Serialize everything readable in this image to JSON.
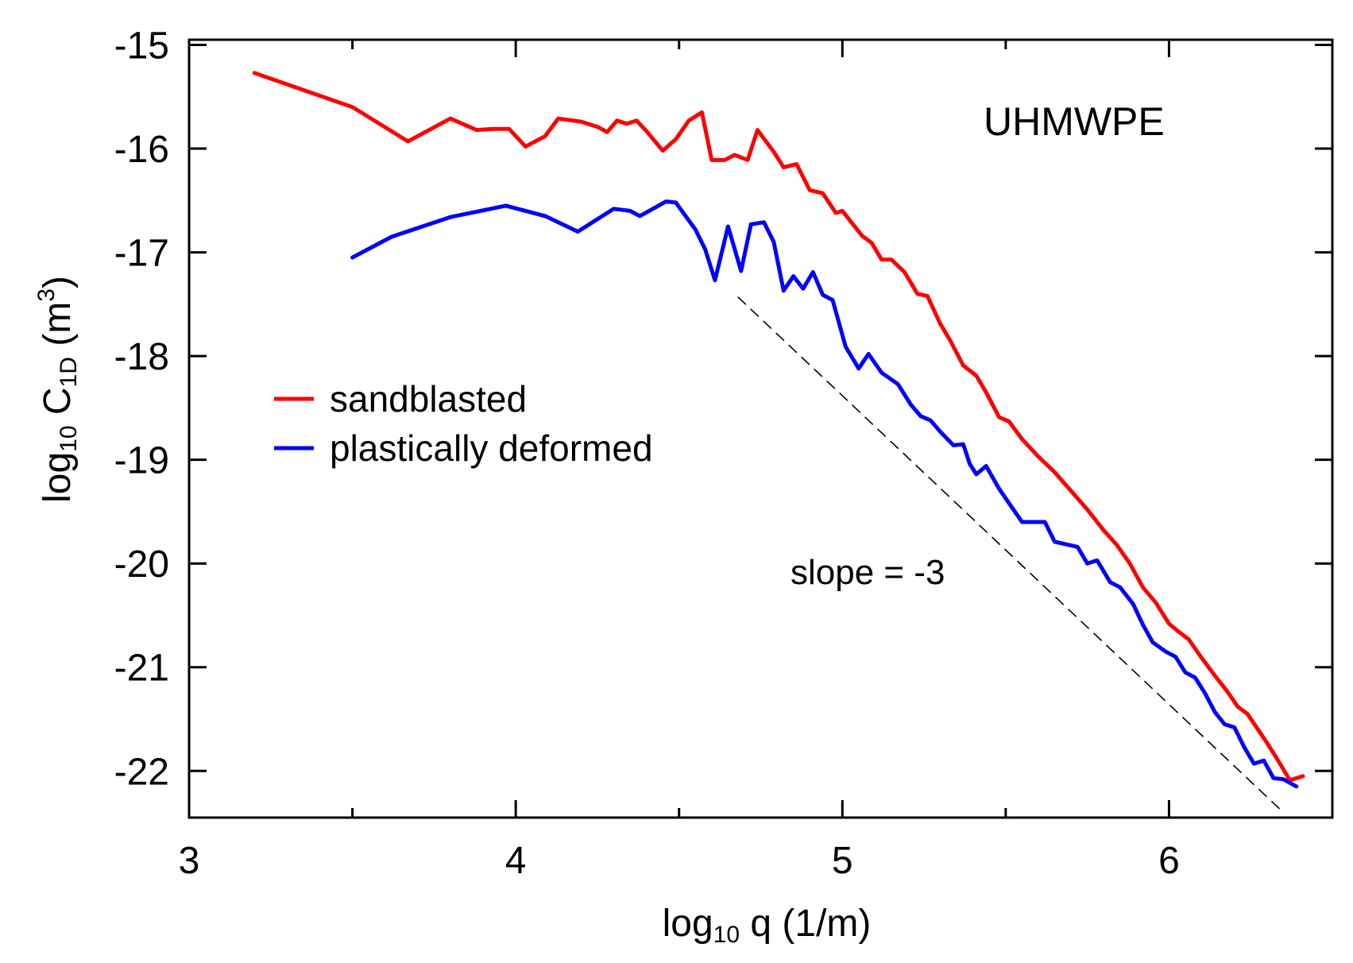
{
  "chart_data": {
    "type": "line",
    "title": "UHMWPE",
    "xlabel": {
      "base": "log",
      "sub": "10",
      "rest": " q  (1/m)"
    },
    "ylabel": {
      "base": "log",
      "sub": "10",
      "mid": " C",
      "sub2": "1D",
      "rest": "  (m",
      "sup": "3",
      "end": ")"
    },
    "xlim": [
      3,
      6.5
    ],
    "ylim": [
      -22.45,
      -14.95
    ],
    "x_ticks": [
      3,
      4,
      5,
      6
    ],
    "x_tick_labels": [
      "3",
      "4",
      "5",
      "6"
    ],
    "y_ticks": [
      -15,
      -16,
      -17,
      -18,
      -19,
      -20,
      -21,
      -22
    ],
    "y_tick_labels": [
      "-15",
      "-16",
      "-17",
      "-18",
      "-19",
      "-20",
      "-21",
      "-22"
    ],
    "grid": false,
    "legend_position": "middle-left",
    "annotation": {
      "text": "slope = -3",
      "x": 5.0,
      "y": -20.1
    },
    "reference_line": {
      "x": [
        4.68,
        6.34
      ],
      "y": [
        -17.43,
        -22.37
      ],
      "slope": -3
    },
    "series": [
      {
        "name": "sandblasted",
        "color": "#ff0000",
        "points": [
          [
            3.2,
            -15.27
          ],
          [
            3.5,
            -15.6
          ],
          [
            3.67,
            -15.93
          ],
          [
            3.8,
            -15.71
          ],
          [
            3.88,
            -15.82
          ],
          [
            3.93,
            -15.81
          ],
          [
            3.98,
            -15.81
          ],
          [
            4.03,
            -15.98
          ],
          [
            4.09,
            -15.88
          ],
          [
            4.13,
            -15.71
          ],
          [
            4.2,
            -15.74
          ],
          [
            4.25,
            -15.79
          ],
          [
            4.28,
            -15.84
          ],
          [
            4.31,
            -15.73
          ],
          [
            4.34,
            -15.76
          ],
          [
            4.37,
            -15.73
          ],
          [
            4.4,
            -15.83
          ],
          [
            4.45,
            -16.02
          ],
          [
            4.49,
            -15.91
          ],
          [
            4.53,
            -15.73
          ],
          [
            4.57,
            -15.65
          ],
          [
            4.6,
            -16.11
          ],
          [
            4.64,
            -16.11
          ],
          [
            4.67,
            -16.06
          ],
          [
            4.71,
            -16.11
          ],
          [
            4.74,
            -15.82
          ],
          [
            4.79,
            -16.03
          ],
          [
            4.82,
            -16.18
          ],
          [
            4.86,
            -16.15
          ],
          [
            4.9,
            -16.4
          ],
          [
            4.94,
            -16.43
          ],
          [
            4.98,
            -16.62
          ],
          [
            5.0,
            -16.6
          ],
          [
            5.06,
            -16.84
          ],
          [
            5.09,
            -16.91
          ],
          [
            5.12,
            -17.07
          ],
          [
            5.15,
            -17.07
          ],
          [
            5.19,
            -17.19
          ],
          [
            5.23,
            -17.4
          ],
          [
            5.26,
            -17.42
          ],
          [
            5.3,
            -17.69
          ],
          [
            5.33,
            -17.85
          ],
          [
            5.37,
            -18.09
          ],
          [
            5.41,
            -18.19
          ],
          [
            5.44,
            -18.35
          ],
          [
            5.48,
            -18.59
          ],
          [
            5.51,
            -18.63
          ],
          [
            5.55,
            -18.8
          ],
          [
            5.6,
            -18.97
          ],
          [
            5.65,
            -19.12
          ],
          [
            5.7,
            -19.3
          ],
          [
            5.75,
            -19.48
          ],
          [
            5.8,
            -19.68
          ],
          [
            5.84,
            -19.82
          ],
          [
            5.88,
            -20.0
          ],
          [
            5.92,
            -20.23
          ],
          [
            5.96,
            -20.38
          ],
          [
            6.0,
            -20.58
          ],
          [
            6.03,
            -20.66
          ],
          [
            6.06,
            -20.73
          ],
          [
            6.1,
            -20.91
          ],
          [
            6.14,
            -21.08
          ],
          [
            6.18,
            -21.24
          ],
          [
            6.21,
            -21.38
          ],
          [
            6.24,
            -21.45
          ],
          [
            6.27,
            -21.59
          ],
          [
            6.3,
            -21.73
          ],
          [
            6.33,
            -21.88
          ],
          [
            6.37,
            -22.09
          ],
          [
            6.41,
            -22.05
          ]
        ]
      },
      {
        "name": "plastically deformed",
        "color": "#0000ff",
        "points": [
          [
            3.5,
            -17.05
          ],
          [
            3.62,
            -16.85
          ],
          [
            3.8,
            -16.66
          ],
          [
            3.97,
            -16.55
          ],
          [
            4.09,
            -16.65
          ],
          [
            4.19,
            -16.8
          ],
          [
            4.3,
            -16.58
          ],
          [
            4.35,
            -16.6
          ],
          [
            4.38,
            -16.65
          ],
          [
            4.46,
            -16.51
          ],
          [
            4.49,
            -16.52
          ],
          [
            4.55,
            -16.78
          ],
          [
            4.58,
            -16.97
          ],
          [
            4.61,
            -17.27
          ],
          [
            4.65,
            -16.75
          ],
          [
            4.69,
            -17.18
          ],
          [
            4.72,
            -16.73
          ],
          [
            4.76,
            -16.71
          ],
          [
            4.79,
            -16.9
          ],
          [
            4.82,
            -17.37
          ],
          [
            4.85,
            -17.23
          ],
          [
            4.88,
            -17.35
          ],
          [
            4.91,
            -17.19
          ],
          [
            4.94,
            -17.41
          ],
          [
            4.97,
            -17.46
          ],
          [
            5.01,
            -17.91
          ],
          [
            5.05,
            -18.12
          ],
          [
            5.08,
            -17.98
          ],
          [
            5.12,
            -18.16
          ],
          [
            5.17,
            -18.27
          ],
          [
            5.21,
            -18.47
          ],
          [
            5.24,
            -18.58
          ],
          [
            5.27,
            -18.62
          ],
          [
            5.3,
            -18.73
          ],
          [
            5.34,
            -18.86
          ],
          [
            5.37,
            -18.85
          ],
          [
            5.39,
            -19.04
          ],
          [
            5.41,
            -19.14
          ],
          [
            5.44,
            -19.06
          ],
          [
            5.48,
            -19.28
          ],
          [
            5.55,
            -19.6
          ],
          [
            5.62,
            -19.6
          ],
          [
            5.65,
            -19.79
          ],
          [
            5.72,
            -19.84
          ],
          [
            5.75,
            -20.0
          ],
          [
            5.78,
            -19.97
          ],
          [
            5.82,
            -20.18
          ],
          [
            5.85,
            -20.23
          ],
          [
            5.89,
            -20.39
          ],
          [
            5.92,
            -20.59
          ],
          [
            5.95,
            -20.76
          ],
          [
            5.99,
            -20.85
          ],
          [
            6.02,
            -20.9
          ],
          [
            6.05,
            -21.05
          ],
          [
            6.08,
            -21.1
          ],
          [
            6.11,
            -21.25
          ],
          [
            6.14,
            -21.43
          ],
          [
            6.17,
            -21.55
          ],
          [
            6.2,
            -21.58
          ],
          [
            6.23,
            -21.77
          ],
          [
            6.26,
            -21.93
          ],
          [
            6.29,
            -21.9
          ],
          [
            6.32,
            -22.07
          ],
          [
            6.35,
            -22.08
          ],
          [
            6.39,
            -22.15
          ]
        ]
      }
    ]
  }
}
